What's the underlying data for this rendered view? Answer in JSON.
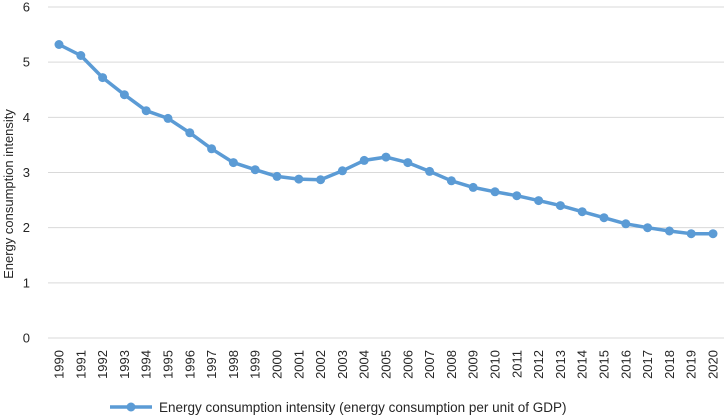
{
  "chart_data": {
    "type": "line",
    "title": "",
    "xlabel": "",
    "ylabel": "Energy consumption intensity",
    "ylim": [
      0,
      6
    ],
    "yticks": [
      "0",
      "1",
      "2",
      "3",
      "4",
      "5",
      "6"
    ],
    "grid": "horizontal",
    "legend_position": "bottom",
    "categories": [
      "1990",
      "1991",
      "1992",
      "1993",
      "1994",
      "1995",
      "1996",
      "1997",
      "1998",
      "1999",
      "2000",
      "2001",
      "2002",
      "2003",
      "2004",
      "2005",
      "2006",
      "2007",
      "2008",
      "2009",
      "2010",
      "2011",
      "2012",
      "2013",
      "2014",
      "2015",
      "2016",
      "2017",
      "2018",
      "2019",
      "2020"
    ],
    "series": [
      {
        "name": "Energy consumption intensity (energy consumption per unit of GDP)",
        "color": "#5B9BD5",
        "values": [
          5.32,
          5.12,
          4.72,
          4.41,
          4.12,
          3.98,
          3.72,
          3.43,
          3.18,
          3.05,
          2.93,
          2.88,
          2.87,
          3.03,
          3.22,
          3.28,
          3.18,
          3.02,
          2.85,
          2.73,
          2.65,
          2.58,
          2.49,
          2.4,
          2.29,
          2.18,
          2.07,
          2.0,
          1.94,
          1.89,
          1.89
        ]
      }
    ]
  },
  "colors": {
    "grid": "#D9D9D9",
    "text": "#262626"
  }
}
